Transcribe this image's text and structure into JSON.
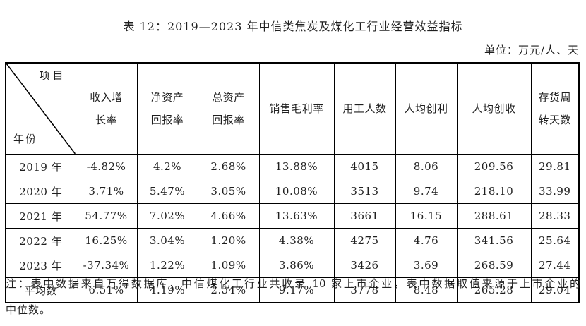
{
  "page": {
    "title": "表 12：2019—2023 年中信类焦炭及煤化工行业经营效益指标",
    "unit_label": "单位：万元/人、天",
    "note_lines": [
      "注：表中数据来自万得数据库，中信煤化工行业共收录 10 家上市企业，表中数据取值来源于上市企业的",
      "中位数。"
    ]
  },
  "table": {
    "corner": {
      "top_right": "项目",
      "bottom_left": "年份"
    },
    "columns": [
      "收入增\n长率",
      "净资产\n回报率",
      "总资产\n回报率",
      "销售毛利率",
      "用工人数",
      "人均创利",
      "人均创收",
      "存货周\n转天数"
    ],
    "rows": [
      {
        "label": "2019 年",
        "bold": false,
        "values": [
          "-4.82%",
          "4.2%",
          "2.68%",
          "13.88%",
          "4015",
          "8.06",
          "209.56",
          "29.81"
        ]
      },
      {
        "label": "2020 年",
        "bold": false,
        "values": [
          "3.71%",
          "5.47%",
          "3.05%",
          "10.08%",
          "3513",
          "9.74",
          "218.10",
          "33.99"
        ]
      },
      {
        "label": "2021 年",
        "bold": false,
        "values": [
          "54.77%",
          "7.02%",
          "4.66%",
          "13.63%",
          "3661",
          "16.15",
          "288.61",
          "28.33"
        ]
      },
      {
        "label": "2022 年",
        "bold": false,
        "values": [
          "16.25%",
          "3.04%",
          "1.20%",
          "4.38%",
          "4275",
          "4.76",
          "341.56",
          "25.64"
        ]
      },
      {
        "label": "2023 年",
        "bold": false,
        "values": [
          "-37.34%",
          "1.22%",
          "1.09%",
          "3.86%",
          "3426",
          "3.69",
          "268.59",
          "27.44"
        ]
      },
      {
        "label": "平均数",
        "bold": true,
        "values": [
          "6.51%",
          "4.19%",
          "2.54%",
          "9.17%",
          "3778",
          "8.48",
          "265.28",
          "29.04"
        ]
      }
    ]
  }
}
